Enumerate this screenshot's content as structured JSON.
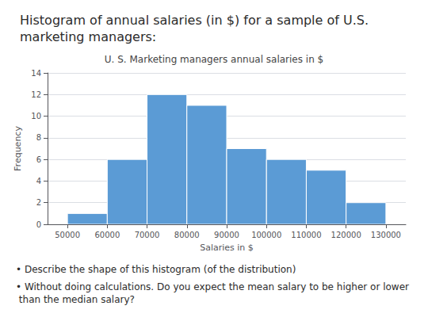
{
  "chart_data": {
    "type": "histogram",
    "title": "Histogram of annual salaries (in $) for a sample of U.S.\nmarketing managers:",
    "subtitle": "U. S. Marketing managers annual salaries in $",
    "xlabel": "Salaries in $",
    "ylabel": "Frequency",
    "bins": [
      50000,
      60000,
      70000,
      80000,
      90000,
      100000,
      110000,
      120000,
      130000
    ],
    "values": [
      1,
      6,
      12,
      11,
      7,
      6,
      5,
      2
    ],
    "color": "#5B9BD5",
    "xlim": [
      45000,
      135000
    ],
    "xticks": [
      50000,
      60000,
      70000,
      80000,
      90000,
      100000,
      110000,
      120000,
      130000
    ],
    "ylim": [
      0,
      14
    ],
    "yticks": [
      0,
      2,
      4,
      6,
      8,
      10,
      12,
      14
    ],
    "grid": true,
    "annotations": [
      "• Describe the shape of this histogram (of the distribution)",
      "• Without doing calculations. Do you expect the mean salary to be higher or lower than the median salary?"
    ]
  }
}
